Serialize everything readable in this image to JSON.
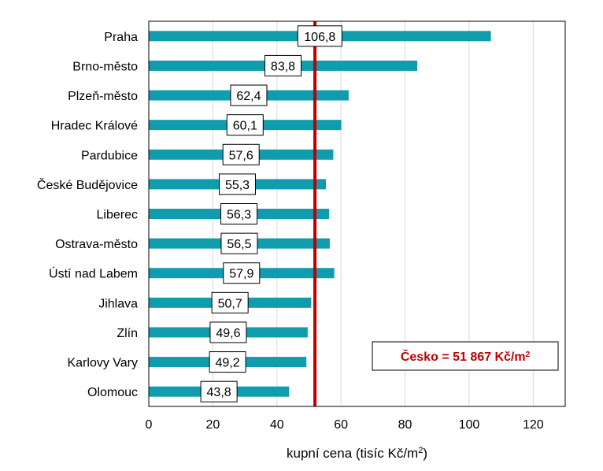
{
  "chart_data": {
    "type": "bar",
    "orientation": "horizontal",
    "categories": [
      "Praha",
      "Brno-město",
      "Plzeň-město",
      "Hradec Králové",
      "Pardubice",
      "České Budějovice",
      "Liberec",
      "Ostrava-město",
      "Ústí nad Labem",
      "Jihlava",
      "Zlín",
      "Karlovy Vary",
      "Olomouc"
    ],
    "values": [
      106.8,
      83.8,
      62.4,
      60.1,
      57.6,
      55.3,
      56.3,
      56.5,
      57.9,
      50.7,
      49.6,
      49.2,
      43.8
    ],
    "labels": [
      "106,8",
      "83,8",
      "62,4",
      "60,1",
      "57,6",
      "55,3",
      "56,3",
      "56,5",
      "57,9",
      "50,7",
      "49,6",
      "49,2",
      "43,8"
    ],
    "xlim": [
      0,
      130
    ],
    "xticks": [
      0,
      20,
      40,
      60,
      80,
      100,
      120
    ],
    "xlabel_main": "kupní cena (tisíc Kč/m",
    "xlabel_sup": "2",
    "xlabel_end": ")",
    "reference_line": {
      "value": 51.867,
      "label_main": "Česko =  51 867 Kč/m",
      "label_sup": "2"
    },
    "grid": "vertical",
    "colors": {
      "bar": "#0f9cad",
      "reference": "#c00000",
      "grid": "#d9d9d9"
    }
  }
}
